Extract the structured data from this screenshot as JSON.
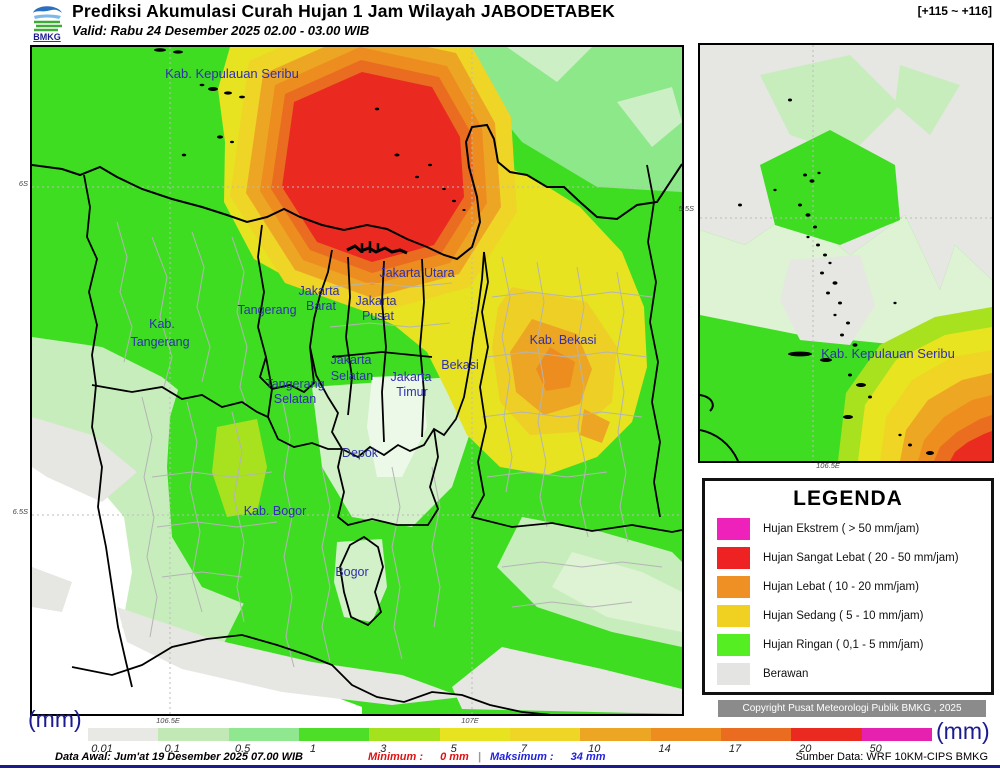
{
  "header": {
    "logo_text": "BMKG",
    "title": "Prediksi Akumulasi Curah Hujan 1 Jam Wilayah JABODETABEK",
    "valid": "Valid: Rabu 24 Desember 2025 02.00 - 03.00 WIB",
    "range": "[+115 ~ +116]"
  },
  "map": {
    "labels": [
      {
        "name": "Kab. Kepulauan Seribu",
        "lines": [
          "Kab. Kepulauan Seribu"
        ]
      },
      {
        "name": "Jakarta Utara",
        "lines": [
          "Jakarta Utara"
        ]
      },
      {
        "name": "Jakarta Barat",
        "lines": [
          "Jakarta",
          "Barat"
        ]
      },
      {
        "name": "Jakarta Pusat",
        "lines": [
          "Jakarta",
          "Pusat"
        ]
      },
      {
        "name": "Tangerang",
        "lines": [
          "Tangerang"
        ]
      },
      {
        "name": "Kab. Tangerang",
        "lines": [
          "Kab.",
          "Tangerang"
        ]
      },
      {
        "name": "Jakarta Selatan",
        "lines": [
          "Jakarta",
          "Selatan"
        ]
      },
      {
        "name": "Jakarta Timur",
        "lines": [
          "Jakarta",
          "Timur"
        ]
      },
      {
        "name": "Bekasi",
        "lines": [
          "Bekasi"
        ]
      },
      {
        "name": "Kab. Bekasi",
        "lines": [
          "Kab. Bekasi"
        ]
      },
      {
        "name": "Tangerang Selatan",
        "lines": [
          "Tangerang",
          "Selatan"
        ]
      },
      {
        "name": "Depok",
        "lines": [
          "Depok"
        ]
      },
      {
        "name": "Kab. Bogor",
        "lines": [
          "Kab. Bogor"
        ]
      },
      {
        "name": "Bogor",
        "lines": [
          "Bogor"
        ]
      }
    ],
    "axis": {
      "lat": [
        "6S",
        "6.5S"
      ],
      "lon": [
        "106.5E",
        "107E"
      ]
    }
  },
  "inset": {
    "label": "Kab. Kepulauan Seribu",
    "axis": {
      "lat": "5.5S",
      "lon": "106.5E"
    }
  },
  "legend": {
    "title": "LEGENDA",
    "items": [
      {
        "label": "Hujan Ekstrem ( > 50 mm/jam)",
        "color": "#ee22bb"
      },
      {
        "label": "Hujan Sangat Lebat ( 20 - 50 mm/jam)",
        "color": "#ee2222"
      },
      {
        "label": "Hujan Lebat ( 10 - 20 mm/jam)",
        "color": "#ef9025"
      },
      {
        "label": "Hujan Sedang ( 5 - 10 mm/jam)",
        "color": "#f0d020"
      },
      {
        "label": "Hujan Ringan ( 0,1 - 5 mm/jam)",
        "color": "#55ee22"
      },
      {
        "label": "Berawan",
        "color": "#e4e4e2"
      }
    ]
  },
  "copyright": "Copyright Pusat Meteorologi Publik BMKG , 2025",
  "colorbar": {
    "unit_left": "(mm)",
    "unit_right": "(mm)",
    "ticks": [
      "0.01",
      "0.1",
      "0.5",
      "1",
      "3",
      "5",
      "7",
      "10",
      "14",
      "17",
      "20",
      "50"
    ],
    "colors": [
      "#e8e8e4",
      "#c2e8b5",
      "#8fe78f",
      "#4ddf28",
      "#a6e11e",
      "#e7e321",
      "#efd526",
      "#eda624",
      "#ed8d1f",
      "#ea6c20",
      "#ea2a20",
      "#e620af"
    ]
  },
  "footer": {
    "data_awal": "Data Awal: Jum'at 19 Desember 2025 07.00 WIB",
    "min_label": "Minimum :",
    "min_value": "0 mm",
    "separator": "|",
    "max_label": "Maksimum :",
    "max_value": "34 mm",
    "source": "Sumber Data: WRF 10KM-CIPS BMKG"
  }
}
